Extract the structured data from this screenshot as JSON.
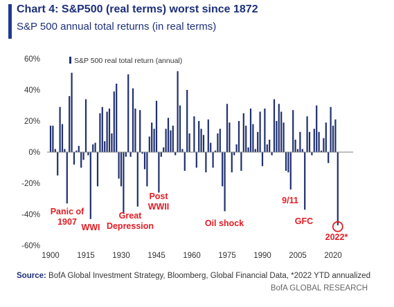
{
  "header": {
    "title": "Chart 4: S&P500 (real terms) worst since 1872",
    "subtitle": "S&P 500 annual total returns (in real terms)"
  },
  "footer": {
    "source_label": "Source:",
    "source_text": "BofA Global Investment Strategy, Bloomberg, Global Financial Data, *2022 YTD annualized",
    "brand": "BofA GLOBAL RESEARCH"
  },
  "colors": {
    "bar": "#1f2f6e",
    "annotation": "#e31b23",
    "axis": "#7f7f7f",
    "title": "#1c2f7a"
  },
  "chart_data": {
    "type": "bar",
    "legend": "S&P 500 real total return (annual)",
    "legend_position": "top-left",
    "xlabel": "",
    "ylabel": "",
    "xlim": [
      1898,
      2030
    ],
    "ylim": [
      -60,
      60
    ],
    "y_ticks": [
      60,
      40,
      20,
      0,
      -20,
      -40,
      -60
    ],
    "y_tick_labels": [
      "60%",
      "40%",
      "20%",
      "0%",
      "-20%",
      "-40%",
      "-60%"
    ],
    "x_ticks": [
      1900,
      1915,
      1930,
      1945,
      1960,
      1975,
      1990,
      2005,
      2020
    ],
    "x_tick_labels": [
      "1900",
      "1915",
      "1930",
      "1945",
      "1960",
      "1975",
      "1990",
      "2005",
      "2020"
    ],
    "grid": false,
    "x": [
      1900,
      1901,
      1902,
      1903,
      1904,
      1905,
      1906,
      1907,
      1908,
      1909,
      1910,
      1911,
      1912,
      1913,
      1914,
      1915,
      1916,
      1917,
      1918,
      1919,
      1920,
      1921,
      1922,
      1923,
      1924,
      1925,
      1926,
      1927,
      1928,
      1929,
      1930,
      1931,
      1932,
      1933,
      1934,
      1935,
      1936,
      1937,
      1938,
      1939,
      1940,
      1941,
      1942,
      1943,
      1944,
      1945,
      1946,
      1947,
      1948,
      1949,
      1950,
      1951,
      1952,
      1953,
      1954,
      1955,
      1956,
      1957,
      1958,
      1959,
      1960,
      1961,
      1962,
      1963,
      1964,
      1965,
      1966,
      1967,
      1968,
      1969,
      1970,
      1971,
      1972,
      1973,
      1974,
      1975,
      1976,
      1977,
      1978,
      1979,
      1980,
      1981,
      1982,
      1983,
      1984,
      1985,
      1986,
      1987,
      1988,
      1989,
      1990,
      1991,
      1992,
      1993,
      1994,
      1995,
      1996,
      1997,
      1998,
      1999,
      2000,
      2001,
      2002,
      2003,
      2004,
      2005,
      2006,
      2007,
      2008,
      2009,
      2010,
      2011,
      2012,
      2013,
      2014,
      2015,
      2016,
      2017,
      2018,
      2019,
      2020,
      2021,
      2022
    ],
    "values": [
      17,
      17,
      2,
      -15,
      29,
      18,
      2,
      -33,
      36,
      51,
      -8,
      1,
      4,
      -10,
      -5,
      34,
      -2,
      -43,
      5,
      6,
      -22,
      25,
      29,
      7,
      26,
      28,
      12,
      39,
      44,
      -17,
      -22,
      -39,
      -3,
      50,
      -3,
      41,
      28,
      -35,
      27,
      -1,
      -11,
      -22,
      10,
      19,
      15,
      33,
      -26,
      -3,
      3,
      15,
      22,
      14,
      17,
      -2,
      52,
      30,
      2,
      -12,
      40,
      12,
      0,
      23,
      -10,
      20,
      15,
      11,
      -13,
      21,
      6,
      -10,
      1,
      12,
      15,
      -22,
      -38,
      31,
      19,
      -13,
      -2,
      5,
      20,
      -12,
      25,
      17,
      3,
      28,
      18,
      2,
      13,
      26,
      -9,
      28,
      5,
      8,
      -2,
      34,
      20,
      31,
      26,
      19,
      -12,
      -13,
      -24,
      27,
      8,
      2,
      13,
      2,
      -37,
      23,
      13,
      -2,
      15,
      30,
      13,
      1,
      9,
      19,
      -7,
      29,
      17,
      21,
      -47
    ]
  },
  "annotations": [
    {
      "label": "Panic of\n1907",
      "year": 1907
    },
    {
      "label": "WWI",
      "year": 1917
    },
    {
      "label": "Great\nDepression",
      "year": 1931
    },
    {
      "label": "Post\nWWII",
      "year": 1946
    },
    {
      "label": "Oil shock",
      "year": 1974
    },
    {
      "label": "9/11",
      "year": 2002
    },
    {
      "label": "GFC",
      "year": 2008
    },
    {
      "label": "2022*",
      "year": 2022
    }
  ]
}
